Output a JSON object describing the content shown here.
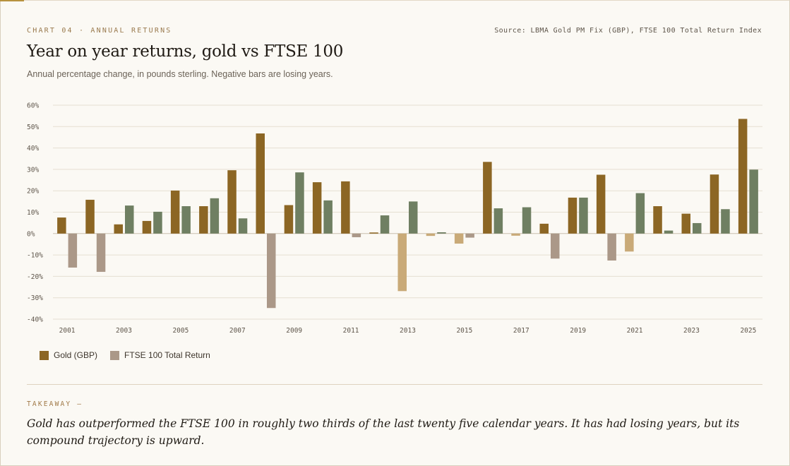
{
  "header": {
    "kicker": "CHART 04 · ANNUAL RETURNS",
    "source": "Source: LBMA Gold PM Fix (GBP), FTSE 100 Total Return Index",
    "title": "Year on year returns, gold vs FTSE 100",
    "subtitle": "Annual percentage change, in pounds sterling. Negative bars are losing years."
  },
  "legend": {
    "gold_label": "Gold (GBP)",
    "ftse_label": "FTSE 100 Total Return"
  },
  "takeaway": {
    "label": "TAKEAWAY —",
    "text": "Gold has outperformed the FTSE 100 in roughly two thirds of the last twenty five calendar years. It has had losing years, but its compound trajectory is upward."
  },
  "colors": {
    "gold_positive": "#8c6624",
    "gold_negative": "#c9aa78",
    "ftse_positive": "#6f7f62",
    "ftse_negative": "#ab9888",
    "grid": "#e6dfd2",
    "zero_line": "#c9bfae",
    "tick_text": "#5e554a"
  },
  "chart_data": {
    "type": "bar",
    "title": "Year on year returns, gold vs FTSE 100",
    "ylabel": "",
    "xlabel": "",
    "ylim": [
      -40,
      60
    ],
    "y_ticks": [
      60,
      50,
      40,
      30,
      20,
      10,
      0,
      -10,
      -20,
      -30,
      -40
    ],
    "y_tick_labels": [
      "60%",
      "50%",
      "40%",
      "30%",
      "20%",
      "10%",
      "0%",
      "-10%",
      "-20%",
      "-30%",
      "-40%"
    ],
    "categories": [
      "2001",
      "2002",
      "2003",
      "2004",
      "2005",
      "2006",
      "2007",
      "2008",
      "2009",
      "2010",
      "2011",
      "2012",
      "2013",
      "2014",
      "2015",
      "2016",
      "2017",
      "2018",
      "2019",
      "2020",
      "2021",
      "2022",
      "2023",
      "2024",
      "2025"
    ],
    "x_tick_labels": [
      "2001",
      "2003",
      "2005",
      "2007",
      "2009",
      "2011",
      "2013",
      "2015",
      "2017",
      "2019",
      "2021",
      "2023",
      "2025"
    ],
    "series": [
      {
        "name": "Gold (GBP)",
        "values": [
          7.5,
          15.8,
          4.3,
          5.9,
          20.1,
          12.8,
          29.6,
          46.8,
          13.3,
          24.0,
          24.4,
          0.5,
          -26.9,
          -1.1,
          -4.7,
          33.5,
          -1.0,
          4.6,
          16.8,
          27.5,
          -8.4,
          12.8,
          9.3,
          27.6,
          53.6
        ]
      },
      {
        "name": "FTSE 100 Total Return",
        "values": [
          -15.9,
          -17.9,
          13.1,
          10.2,
          12.8,
          16.5,
          7.1,
          -34.8,
          28.6,
          15.5,
          -1.7,
          8.5,
          15.0,
          0.6,
          -1.9,
          11.8,
          12.3,
          -11.7,
          16.8,
          -12.6,
          18.9,
          1.4,
          4.9,
          11.4,
          29.9
        ]
      }
    ],
    "legend_position": "bottom-left",
    "grid": true
  }
}
